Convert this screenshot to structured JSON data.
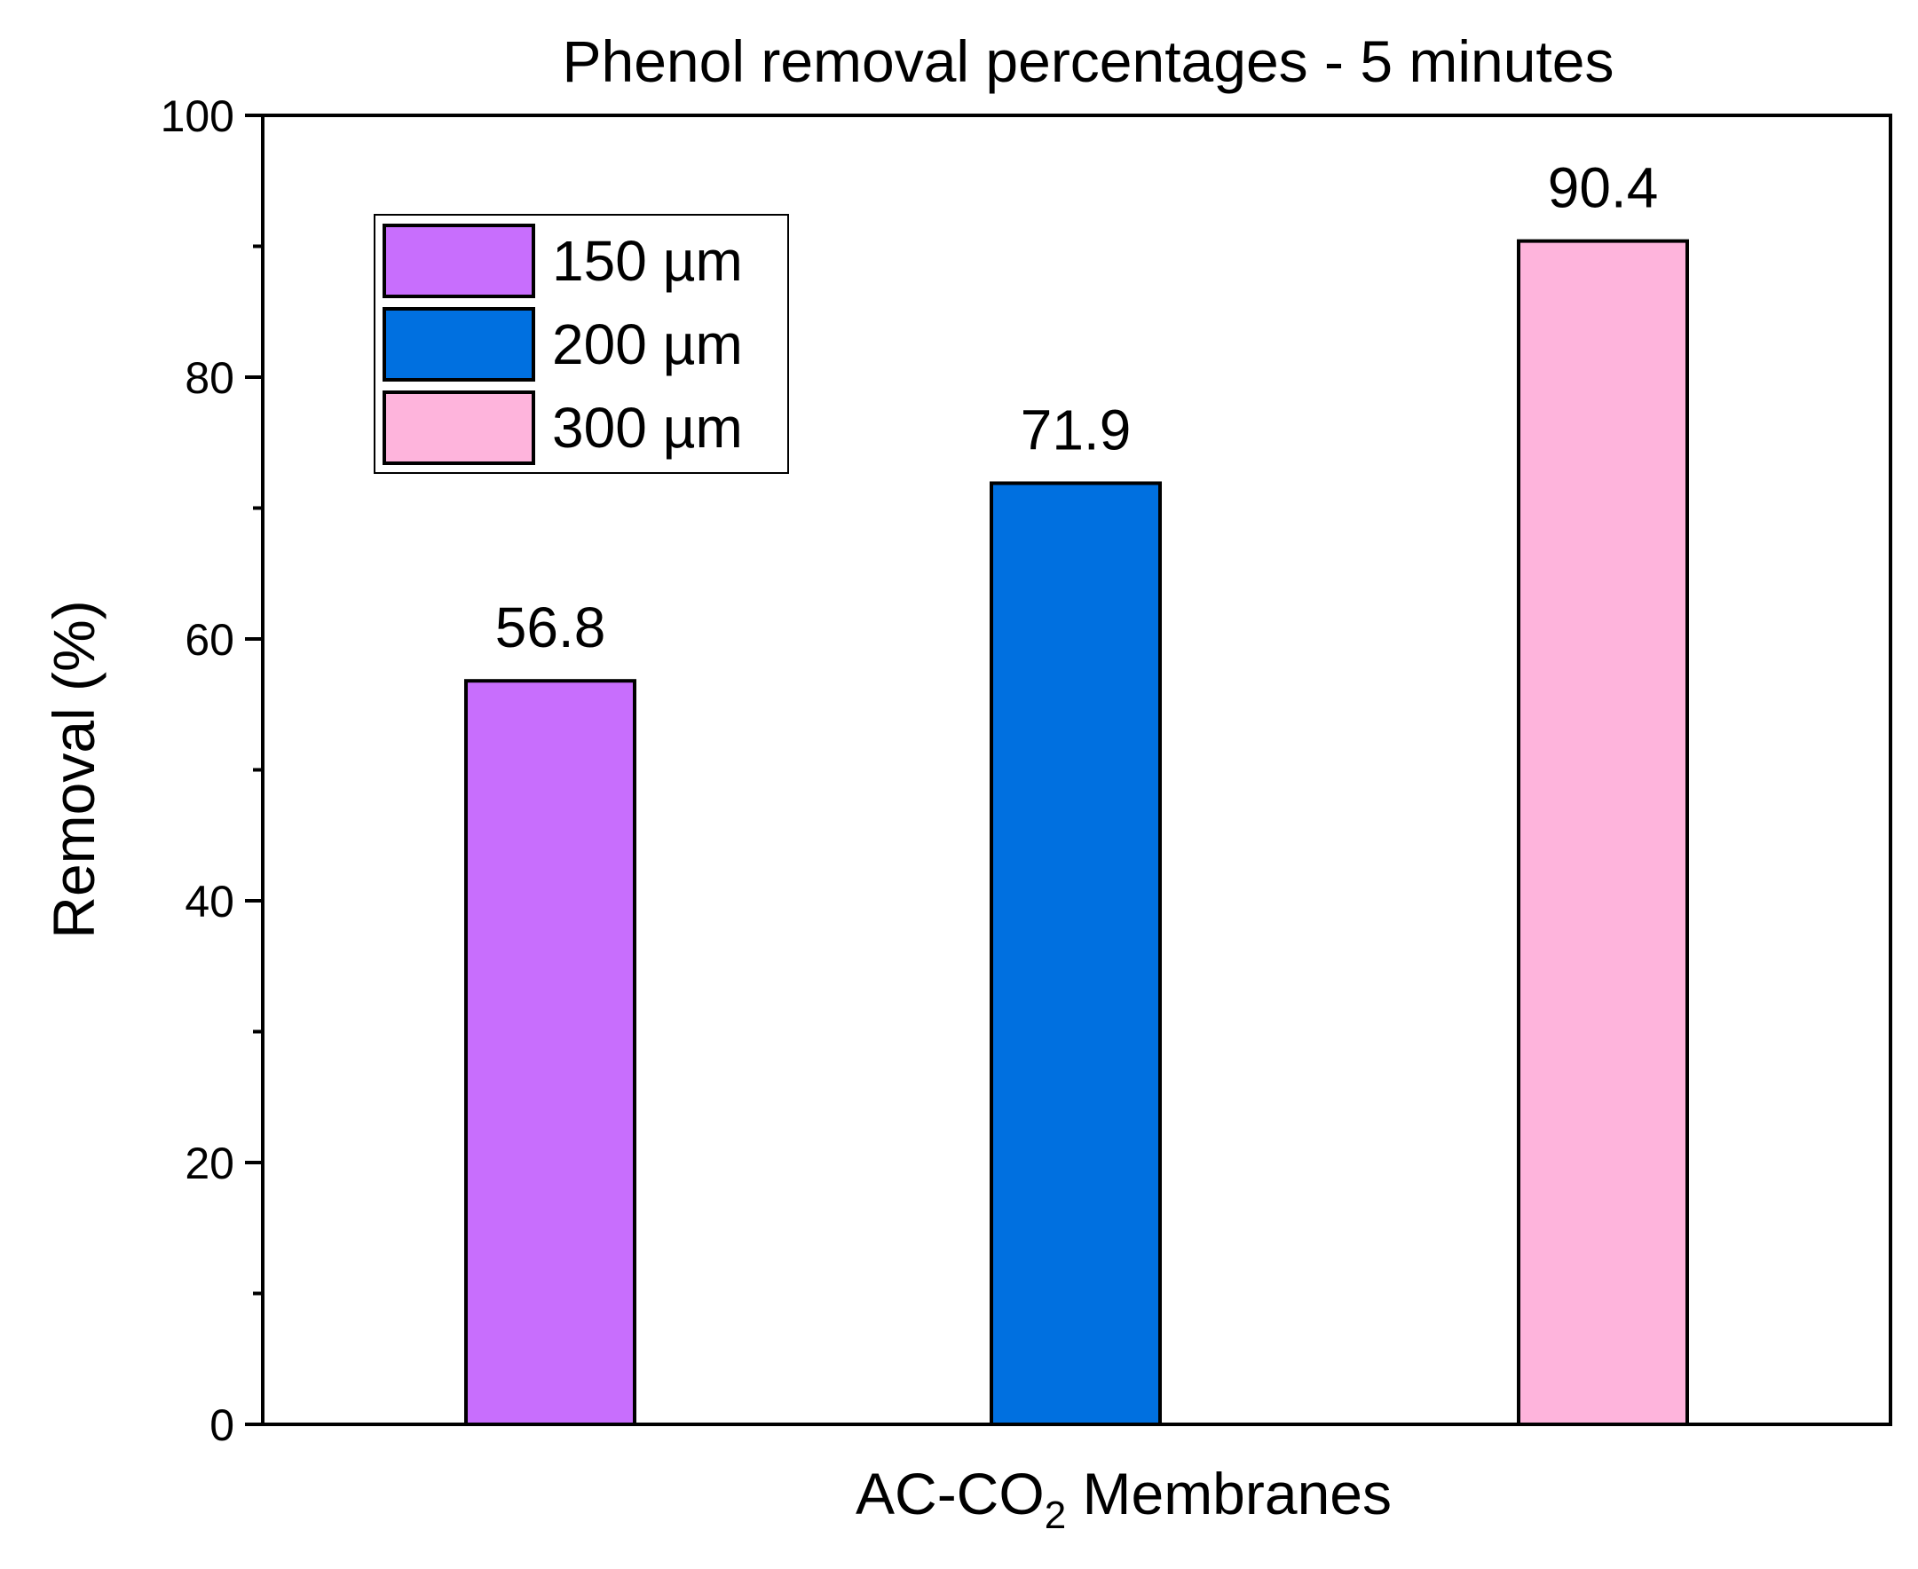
{
  "chart_data": {
    "type": "bar",
    "title": "Phenol removal percentages - 5 minutes",
    "xlabel": "AC-CO₂ Membranes",
    "xlabel_parts": {
      "main": "AC-CO",
      "subscript": "2",
      "rest": " Membranes"
    },
    "ylabel": "Removal (%)",
    "ylim": [
      0,
      100
    ],
    "yticks": [
      0,
      20,
      40,
      60,
      80,
      100
    ],
    "yticks_minor": [
      10,
      30,
      50,
      70,
      90
    ],
    "grid": false,
    "legend_position": "top-left",
    "series": [
      {
        "name": "150 µm",
        "value": 56.8,
        "label": "56.8",
        "color": "#c86efd"
      },
      {
        "name": "200 µm",
        "value": 71.9,
        "label": "71.9",
        "color": "#0070e0"
      },
      {
        "name": "300 µm",
        "value": 90.4,
        "label": "90.4",
        "color": "#feb4dc"
      }
    ]
  }
}
